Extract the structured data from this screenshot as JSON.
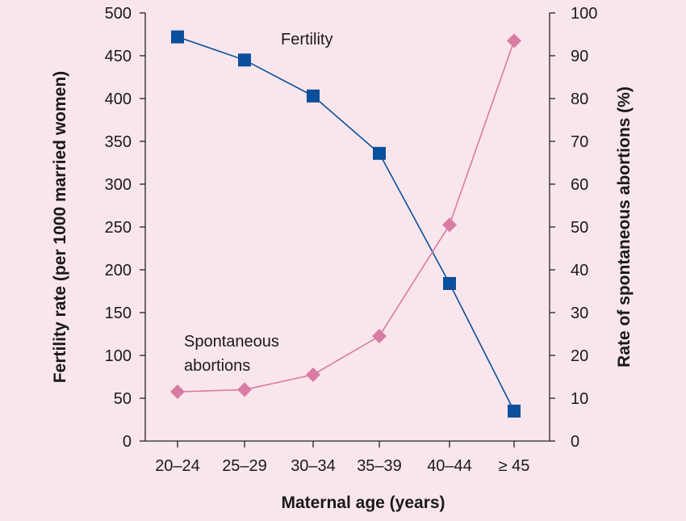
{
  "chart_data": {
    "type": "line",
    "categories": [
      "20–24",
      "25–29",
      "30–34",
      "35–39",
      "40–44",
      "≥ 45"
    ],
    "xlabel": "Maternal age (years)",
    "ylabel": "Fertility rate (per 1000 married women)",
    "y2label": "Rate of spontaneous abortions (%)",
    "ylim": [
      0,
      500
    ],
    "yticks": [
      0,
      50,
      100,
      150,
      200,
      250,
      300,
      350,
      400,
      450,
      500
    ],
    "y2lim": [
      0,
      100
    ],
    "y2ticks": [
      0,
      10,
      20,
      30,
      40,
      50,
      60,
      70,
      80,
      90,
      100
    ],
    "grid": false,
    "legend": "none",
    "series": [
      {
        "name": "Fertility",
        "axis": "left",
        "marker": "square",
        "color": "#0a4f9c",
        "values": [
          472,
          445,
          403,
          336,
          184,
          35
        ]
      },
      {
        "name": "Spontaneous abortions",
        "axis": "right",
        "marker": "diamond",
        "color": "#d97ba3",
        "values": [
          11.5,
          12,
          15.5,
          24.5,
          50.5,
          93.5
        ]
      }
    ],
    "annotations": [
      {
        "text": "Fertility",
        "series": 0
      },
      {
        "text": "Spontaneous",
        "series": 1
      },
      {
        "text": "abortions",
        "series": 1
      }
    ]
  }
}
